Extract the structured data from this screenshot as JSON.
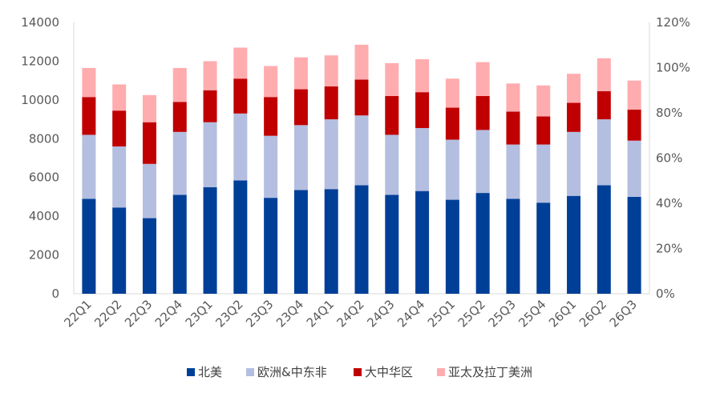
{
  "chart_data": {
    "type": "bar",
    "stacked": true,
    "categories": [
      "22Q1",
      "22Q2",
      "22Q3",
      "22Q4",
      "23Q1",
      "23Q2",
      "23Q3",
      "23Q4",
      "24Q1",
      "24Q2",
      "24Q3",
      "24Q4",
      "25Q1",
      "25Q2",
      "25Q3",
      "25Q4",
      "26Q1",
      "26Q2",
      "26Q3"
    ],
    "series": [
      {
        "name": "北美",
        "color": "#003f98",
        "values": [
          4900,
          4450,
          3900,
          5100,
          5500,
          5850,
          4950,
          5350,
          5400,
          5600,
          5100,
          5300,
          4850,
          5200,
          4900,
          4700,
          5050,
          5600,
          5000
        ]
      },
      {
        "name": "欧洲&中东非",
        "color": "#b4bee0",
        "values": [
          3300,
          3150,
          2800,
          3250,
          3350,
          3450,
          3200,
          3350,
          3600,
          3600,
          3100,
          3250,
          3100,
          3250,
          2800,
          3000,
          3300,
          3400,
          2900
        ]
      },
      {
        "name": "大中华区",
        "color": "#c00000",
        "values": [
          1950,
          1850,
          2150,
          1550,
          1650,
          1800,
          2000,
          1850,
          1700,
          1850,
          2000,
          1850,
          1650,
          1750,
          1700,
          1450,
          1500,
          1450,
          1600
        ]
      },
      {
        "name": "亚太及拉丁美洲",
        "color": "#ffacaf",
        "values": [
          1500,
          1350,
          1400,
          1750,
          1500,
          1600,
          1600,
          1650,
          1600,
          1800,
          1700,
          1700,
          1500,
          1750,
          1450,
          1600,
          1500,
          1700,
          1500
        ]
      }
    ],
    "y_left": {
      "ticks": [
        "0",
        "2000",
        "4000",
        "6000",
        "8000",
        "10000",
        "12000",
        "14000"
      ],
      "ylim": [
        0,
        14000
      ]
    },
    "y_right": {
      "ticks": [
        "0%",
        "20%",
        "40%",
        "60%",
        "80%",
        "100%",
        "120%"
      ],
      "ylim": [
        0,
        1.2
      ]
    },
    "legend_position": "bottom",
    "grid": false
  }
}
